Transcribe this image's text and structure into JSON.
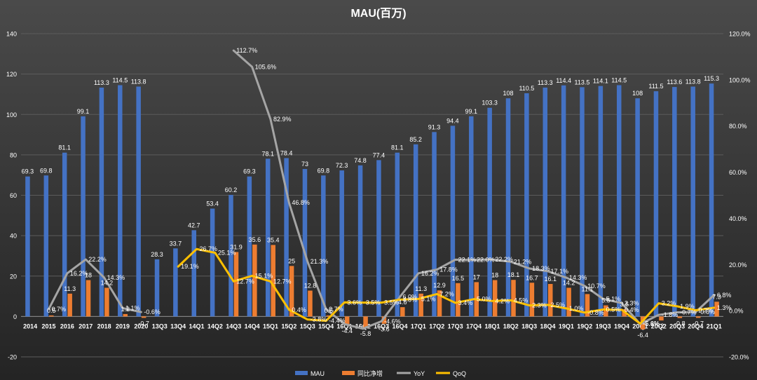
{
  "colors": {
    "background_top": "#4a4a4a",
    "background_bottom": "#242424",
    "mau": "#4472C4",
    "net_add": "#ED7D31",
    "yoy": "#A5A5A5",
    "qoq": "#FFC000",
    "text": "#ffffff",
    "gridline": "#5c5c5c"
  },
  "chart_data": {
    "type": "bar",
    "title": "MAU(百万)",
    "categories": [
      "2014",
      "2015",
      "2016",
      "2017",
      "2018",
      "2019",
      "2020",
      "13Q3",
      "13Q4",
      "14Q1",
      "14Q2",
      "14Q3",
      "14Q4",
      "15Q1",
      "15Q2",
      "15Q3",
      "15Q4",
      "16Q1",
      "16Q2",
      "16Q3",
      "16Q4",
      "17Q1",
      "17Q2",
      "17Q3",
      "17Q4",
      "18Q1",
      "18Q2",
      "18Q3",
      "18Q4",
      "19Q1",
      "19Q2",
      "19Q3",
      "19Q4",
      "20Q1",
      "20Q2",
      "20Q3",
      "20Q4",
      "21Q1"
    ],
    "y_left": {
      "min": -20,
      "max": 140,
      "ticks": [
        -20,
        0,
        20,
        40,
        60,
        80,
        100,
        120,
        140
      ]
    },
    "y_right": {
      "min": -20,
      "max": 120,
      "ticks": [
        -20,
        0,
        20,
        40,
        60,
        80,
        100,
        120
      ],
      "tick_labels": [
        "-20.0%",
        "0.0%",
        "20.0%",
        "40.0%",
        "60.0%",
        "80.0%",
        "100.0%",
        "120.0%"
      ]
    },
    "grid": "horizontal",
    "legend_position": "bottom-center",
    "series": [
      {
        "name": "MAU",
        "kind": "bar",
        "axis": "left",
        "values": [
          69.3,
          69.8,
          81.1,
          99.1,
          113.3,
          114.5,
          113.8,
          28.3,
          33.7,
          42.7,
          53.4,
          60.2,
          69.3,
          78.1,
          78.4,
          73,
          69.8,
          72.3,
          74.8,
          77.4,
          81.1,
          85.2,
          91.3,
          94.4,
          99.1,
          103.3,
          108,
          110.5,
          113.3,
          114.4,
          113.5,
          114.1,
          114.5,
          108,
          111.5,
          113.6,
          113.8,
          115.3
        ],
        "labels": [
          "69.3",
          "69.8",
          "81.1",
          "99.1",
          "113.3",
          "114.5",
          "113.8",
          "28.3",
          "33.7",
          "42.7",
          "53.4",
          "60.2",
          "69.3",
          "78.1",
          "78.4",
          "73",
          "69.8",
          "72.3",
          "74.8",
          "77.4",
          "81.1",
          "85.2",
          "91.3",
          "94.4",
          "99.1",
          "103.3",
          "108",
          "110.5",
          "113.3",
          "114.4",
          "113.5",
          "114.1",
          "114.5",
          "108",
          "111.5",
          "113.6",
          "113.8",
          "115.3"
        ]
      },
      {
        "name": "同比净增",
        "kind": "bar",
        "axis": "left",
        "values": [
          null,
          0.5,
          11.3,
          18,
          14.2,
          1.2,
          -0.7,
          null,
          null,
          null,
          null,
          31.9,
          35.6,
          35.4,
          25,
          12.8,
          0.5,
          -4.4,
          -5.8,
          -3.6,
          4.6,
          11.3,
          12.9,
          16.5,
          17,
          18,
          18.1,
          16.7,
          16.1,
          14.2,
          11.1,
          5.5,
          3.6,
          -6.4,
          -2,
          -0.8,
          -0.7,
          7.3
        ],
        "labels": [
          "",
          "0.5",
          "11.3",
          "18",
          "14.2",
          "1.2",
          "-0.7",
          "",
          "",
          "",
          "",
          "31.9",
          "35.6",
          "35.4",
          "25",
          "12.8",
          "0.5",
          "-4.4",
          "-5.8",
          "-3.6",
          "4.6",
          "11.3",
          "12.9",
          "16.5",
          "17",
          "18",
          "18.1",
          "16.7",
          "16.1",
          "14.2",
          "11.1",
          "5.5",
          "3.6",
          "-6.4",
          "-2",
          "-0.8",
          "-0.7",
          "7.3"
        ]
      },
      {
        "name": "YoY",
        "kind": "line",
        "axis": "right",
        "values": [
          null,
          0.7,
          16.2,
          22.2,
          14.3,
          1.1,
          -0.6,
          null,
          null,
          null,
          null,
          112.7,
          105.6,
          82.9,
          46.8,
          21.3,
          0.7,
          -5.8,
          -7.8,
          -4.6,
          6.0,
          16.2,
          17.8,
          22.1,
          22.0,
          22.2,
          21.2,
          18.3,
          17.1,
          14.3,
          10.7,
          5.1,
          3.3,
          -5.8,
          -1.8,
          -0.7,
          -0.6,
          6.8
        ],
        "labels": [
          "",
          "0.7%",
          "16.2%",
          "22.2%",
          "14.3%",
          "1.1%",
          "-0.6%",
          "",
          "",
          "",
          "",
          "112.7%",
          "105.6%",
          "82.9%",
          "46.8%",
          "21.3%",
          "0.7%",
          "",
          "",
          "-4.6%",
          "6.0%",
          "16.2%",
          "17.8%",
          "22.1%",
          "22.0%",
          "22.2%",
          "21.2%",
          "18.3%",
          "17.1%",
          "14.3%",
          "10.7%",
          "5.1%",
          "3.3%",
          "-5.8%",
          "-1.8%",
          "-0.7%",
          "-0.6%",
          "6.8%"
        ]
      },
      {
        "name": "QoQ",
        "kind": "line",
        "axis": "right",
        "values": [
          null,
          null,
          null,
          null,
          null,
          null,
          null,
          null,
          19.1,
          26.7,
          25.1,
          12.7,
          15.1,
          12.7,
          0.4,
          -3.8,
          -4.4,
          3.6,
          3.5,
          3.5,
          4.8,
          5.1,
          7.2,
          3.4,
          5.0,
          4.2,
          4.5,
          2.3,
          2.5,
          1.0,
          -0.8,
          0.5,
          0.4,
          -5.6,
          3.2,
          1.9,
          0.2,
          1.3
        ],
        "labels": [
          "",
          "",
          "",
          "",
          "",
          "",
          "",
          "",
          "19.1%",
          "26.7%",
          "25.1%",
          "12.7%",
          "15.1%",
          "12.7%",
          "0.4%",
          "-3.8%",
          "-4.4%",
          "3.6%",
          "3.5%",
          "3.5%",
          "4.8%",
          "5.1%",
          "7.2%",
          "3.4%",
          "5.0%",
          "4.2%",
          "4.5%",
          "2.3%",
          "2.5%",
          "1.0%",
          "-0.8%",
          "0.5%",
          "0.4%",
          "-5.6%",
          "3.2%",
          "1.9%",
          "0.2%",
          "1.3%"
        ]
      }
    ]
  }
}
